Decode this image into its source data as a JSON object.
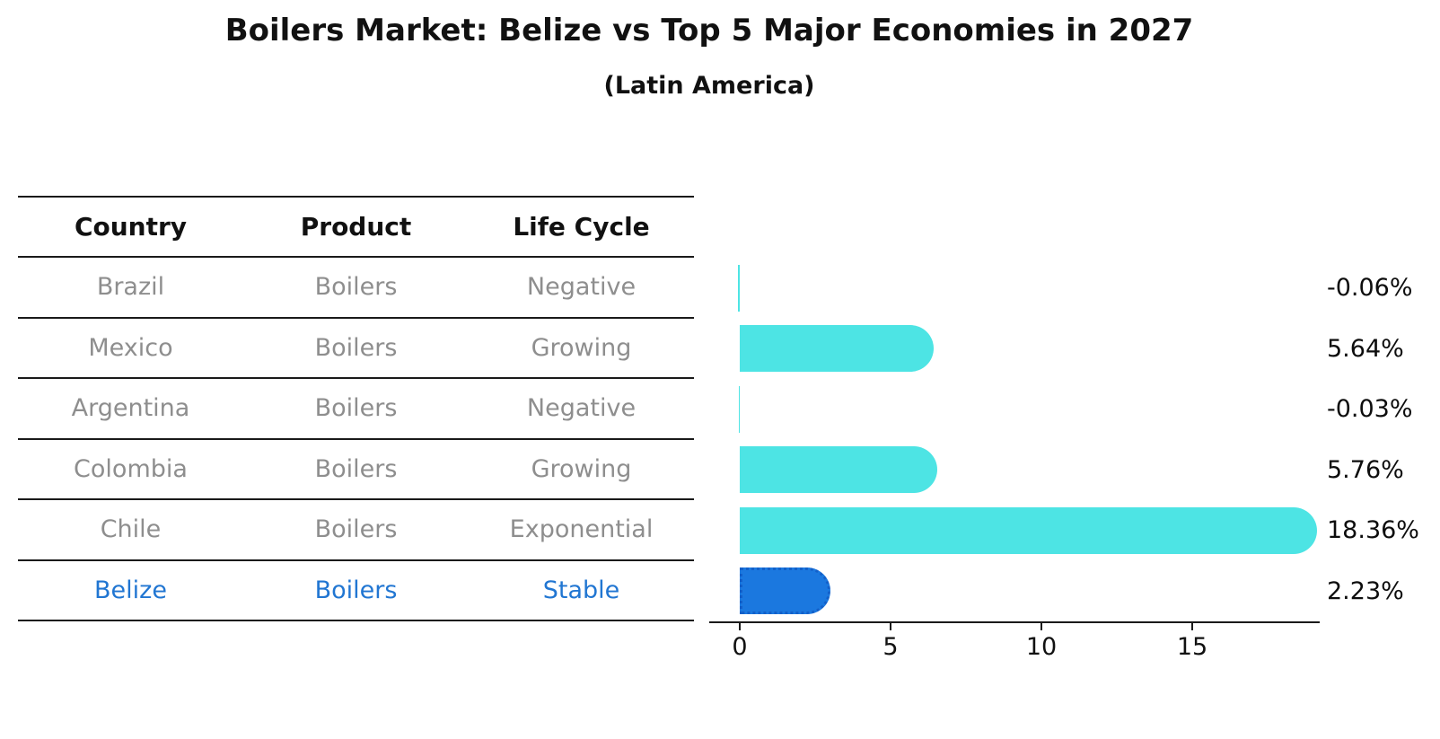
{
  "title": "Boilers Market: Belize vs Top 5 Major Economies in 2027",
  "subtitle": "(Latin America)",
  "table": {
    "columns": [
      "Country",
      "Product",
      "Life Cycle"
    ],
    "rows": [
      {
        "country": "Brazil",
        "product": "Boilers",
        "life_cycle": "Negative"
      },
      {
        "country": "Mexico",
        "product": "Boilers",
        "life_cycle": "Growing"
      },
      {
        "country": "Argentina",
        "product": "Boilers",
        "life_cycle": "Negative"
      },
      {
        "country": "Colombia",
        "product": "Boilers",
        "life_cycle": "Growing"
      },
      {
        "country": "Chile",
        "product": "Boilers",
        "life_cycle": "Exponential"
      },
      {
        "country": "Belize",
        "product": "Boilers",
        "life_cycle": "Stable"
      }
    ],
    "highlight_row": "Belize"
  },
  "chart_data": {
    "type": "bar",
    "orientation": "horizontal",
    "categories": [
      "Brazil",
      "Mexico",
      "Argentina",
      "Colombia",
      "Chile",
      "Belize"
    ],
    "values": [
      -0.06,
      5.64,
      -0.03,
      5.76,
      18.36,
      2.23
    ],
    "labels": [
      "-0.06%",
      "5.64%",
      "-0.03%",
      "5.76%",
      "18.36%",
      "2.23%"
    ],
    "unit": "%",
    "x_ticks": [
      0,
      5,
      10,
      15
    ],
    "xlim": [
      -1,
      19.2
    ],
    "grid": false,
    "legend": false,
    "highlight_index": 5,
    "colors": {
      "bar_default": "#4de4e4",
      "bar_highlight": "#1b78df",
      "bar_highlight_border": "#1360c9",
      "axis": "#1a1a1a",
      "value_label": "#0d0d0d",
      "table_text_gray": "#8e8e8e",
      "table_text_highlight": "#2176d2"
    }
  }
}
